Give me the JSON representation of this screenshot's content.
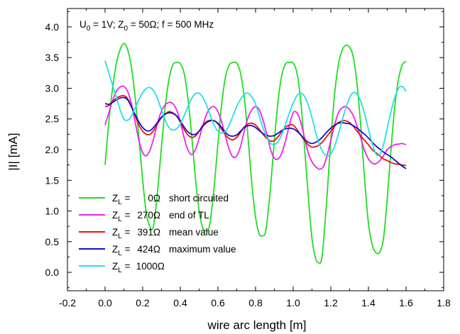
{
  "chart_data": {
    "type": "line",
    "xlabel": "wire arc length  [m]",
    "ylabel": "|I|  [mA]",
    "xlim": [
      -0.2,
      1.8
    ],
    "ylim": [
      -0.3,
      4.3
    ],
    "xticks": [
      "-0.2",
      "0.0",
      "0.2",
      "0.4",
      "0.6",
      "0.8",
      "1.0",
      "1.2",
      "1.4",
      "1.6",
      "1.8"
    ],
    "yticks": [
      "0.0",
      "0.5",
      "1.0",
      "1.5",
      "2.0",
      "2.5",
      "3.0",
      "3.5",
      "4.0"
    ],
    "annotation": {
      "u_sym": "U",
      "u_sub": "0",
      "u_rest": " = 1V;  ",
      "z_sym": "Z",
      "z_sub": "0",
      "z_rest": " = 50Ω;  f = 500 MHz"
    },
    "legend_position": "bottom-left",
    "grid": false,
    "series": [
      {
        "sym": "Z",
        "sub": "L",
        "eq": " =",
        "value": "0Ω",
        "desc": "short circuited",
        "color": "#22dd22",
        "x": [
          0.0,
          0.02,
          0.04,
          0.06,
          0.08,
          0.1,
          0.12,
          0.14,
          0.16,
          0.18,
          0.2,
          0.22,
          0.24,
          0.25,
          0.26,
          0.28,
          0.3,
          0.32,
          0.34,
          0.36,
          0.38,
          0.4,
          0.42,
          0.44,
          0.46,
          0.48,
          0.5,
          0.52,
          0.54,
          0.55,
          0.56,
          0.58,
          0.6,
          0.62,
          0.64,
          0.66,
          0.68,
          0.7,
          0.72,
          0.74,
          0.76,
          0.78,
          0.8,
          0.82,
          0.84,
          0.85,
          0.86,
          0.88,
          0.9,
          0.92,
          0.94,
          0.96,
          0.98,
          1.0,
          1.02,
          1.04,
          1.06,
          1.08,
          1.1,
          1.12,
          1.14,
          1.15,
          1.16,
          1.18,
          1.2,
          1.22,
          1.24,
          1.26,
          1.28,
          1.3,
          1.32,
          1.34,
          1.36,
          1.38,
          1.4,
          1.42,
          1.44,
          1.46,
          1.48,
          1.5,
          1.52,
          1.54,
          1.56,
          1.58,
          1.6
        ],
        "y": [
          1.75,
          2.45,
          3.0,
          3.4,
          3.63,
          3.73,
          3.63,
          3.35,
          2.85,
          2.2,
          1.5,
          0.95,
          0.73,
          0.7,
          0.8,
          1.35,
          2.05,
          2.7,
          3.15,
          3.38,
          3.42,
          3.4,
          3.25,
          2.85,
          2.25,
          1.55,
          1.0,
          0.72,
          0.68,
          0.7,
          0.85,
          1.4,
          2.1,
          2.75,
          3.18,
          3.38,
          3.42,
          3.41,
          3.25,
          2.85,
          2.2,
          1.45,
          0.9,
          0.62,
          0.6,
          0.62,
          0.8,
          1.4,
          2.15,
          2.8,
          3.22,
          3.4,
          3.42,
          3.41,
          3.25,
          2.8,
          2.05,
          1.25,
          0.55,
          0.22,
          0.15,
          0.2,
          0.45,
          1.25,
          2.15,
          2.9,
          3.38,
          3.62,
          3.7,
          3.67,
          3.5,
          3.05,
          2.35,
          1.5,
          0.8,
          0.45,
          0.32,
          0.33,
          0.55,
          1.2,
          2.0,
          2.7,
          3.15,
          3.38,
          3.44
        ]
      },
      {
        "sym": "Z",
        "sub": "L",
        "eq": " =",
        "value": "270Ω",
        "desc": "end of TL",
        "color": "#ee22ee",
        "x": [
          0.0,
          0.02,
          0.04,
          0.06,
          0.08,
          0.1,
          0.12,
          0.14,
          0.16,
          0.18,
          0.2,
          0.22,
          0.24,
          0.26,
          0.28,
          0.3,
          0.32,
          0.34,
          0.36,
          0.38,
          0.4,
          0.42,
          0.44,
          0.46,
          0.48,
          0.5,
          0.52,
          0.54,
          0.56,
          0.58,
          0.6,
          0.62,
          0.64,
          0.66,
          0.68,
          0.7,
          0.72,
          0.74,
          0.76,
          0.78,
          0.8,
          0.82,
          0.84,
          0.86,
          0.88,
          0.9,
          0.92,
          0.94,
          0.96,
          0.98,
          1.0,
          1.02,
          1.04,
          1.06,
          1.08,
          1.1,
          1.12,
          1.14,
          1.16,
          1.18,
          1.2,
          1.22,
          1.24,
          1.26,
          1.28,
          1.3,
          1.32,
          1.34,
          1.36,
          1.38,
          1.4,
          1.42,
          1.44,
          1.46,
          1.48,
          1.5,
          1.52,
          1.54,
          1.56,
          1.58,
          1.6
        ],
        "y": [
          2.4,
          2.6,
          2.8,
          2.95,
          3.02,
          3.03,
          2.95,
          2.75,
          2.45,
          2.15,
          1.95,
          1.9,
          2.0,
          2.2,
          2.45,
          2.63,
          2.73,
          2.77,
          2.75,
          2.65,
          2.45,
          2.2,
          2.0,
          1.92,
          2.0,
          2.18,
          2.4,
          2.58,
          2.68,
          2.7,
          2.62,
          2.45,
          2.22,
          2.0,
          1.88,
          1.9,
          2.05,
          2.3,
          2.52,
          2.65,
          2.7,
          2.65,
          2.48,
          2.25,
          2.0,
          1.86,
          1.85,
          1.95,
          2.15,
          2.4,
          2.6,
          2.6,
          2.45,
          2.2,
          1.95,
          1.8,
          1.72,
          1.68,
          1.72,
          1.9,
          2.15,
          2.4,
          2.6,
          2.68,
          2.7,
          2.65,
          2.55,
          2.38,
          2.18,
          1.98,
          1.85,
          1.78,
          1.77,
          1.82,
          1.9,
          2.0,
          2.05,
          2.08,
          2.09,
          2.1,
          2.08
        ]
      },
      {
        "sym": "Z",
        "sub": "L",
        "eq": " =",
        "value": "391Ω",
        "desc": "mean value",
        "color": "#ee1111",
        "x": [
          0.0,
          0.02,
          0.04,
          0.06,
          0.08,
          0.1,
          0.12,
          0.14,
          0.16,
          0.18,
          0.2,
          0.22,
          0.24,
          0.26,
          0.28,
          0.3,
          0.32,
          0.34,
          0.36,
          0.38,
          0.4,
          0.42,
          0.44,
          0.46,
          0.48,
          0.5,
          0.52,
          0.54,
          0.56,
          0.58,
          0.6,
          0.62,
          0.64,
          0.66,
          0.68,
          0.7,
          0.72,
          0.74,
          0.76,
          0.78,
          0.8,
          0.82,
          0.84,
          0.86,
          0.88,
          0.9,
          0.92,
          0.94,
          0.96,
          0.98,
          1.0,
          1.02,
          1.04,
          1.06,
          1.08,
          1.1,
          1.12,
          1.14,
          1.16,
          1.18,
          1.2,
          1.22,
          1.24,
          1.26,
          1.28,
          1.3,
          1.32,
          1.34,
          1.36,
          1.38,
          1.4,
          1.42,
          1.44,
          1.46,
          1.48,
          1.5,
          1.52,
          1.54,
          1.56,
          1.58,
          1.6
        ],
        "y": [
          2.7,
          2.72,
          2.78,
          2.84,
          2.87,
          2.88,
          2.83,
          2.7,
          2.55,
          2.4,
          2.3,
          2.25,
          2.25,
          2.32,
          2.43,
          2.52,
          2.58,
          2.62,
          2.6,
          2.55,
          2.45,
          2.33,
          2.24,
          2.2,
          2.22,
          2.3,
          2.4,
          2.46,
          2.48,
          2.47,
          2.42,
          2.33,
          2.24,
          2.18,
          2.16,
          2.2,
          2.28,
          2.37,
          2.42,
          2.43,
          2.4,
          2.33,
          2.25,
          2.18,
          2.14,
          2.15,
          2.21,
          2.3,
          2.37,
          2.4,
          2.4,
          2.33,
          2.24,
          2.15,
          2.08,
          2.04,
          2.05,
          2.08,
          2.14,
          2.22,
          2.3,
          2.38,
          2.44,
          2.47,
          2.47,
          2.44,
          2.38,
          2.3,
          2.22,
          2.15,
          2.08,
          2.0,
          1.95,
          1.9,
          1.85,
          1.82,
          1.79,
          1.77,
          1.76,
          1.75,
          1.74
        ]
      },
      {
        "sym": "Z",
        "sub": "L",
        "eq": " =",
        "value": "424Ω",
        "desc": "maximum value",
        "color": "#1111cc",
        "x": [
          0.0,
          0.02,
          0.04,
          0.06,
          0.08,
          0.1,
          0.12,
          0.14,
          0.16,
          0.18,
          0.2,
          0.22,
          0.24,
          0.26,
          0.28,
          0.3,
          0.32,
          0.34,
          0.36,
          0.38,
          0.4,
          0.42,
          0.44,
          0.46,
          0.48,
          0.5,
          0.52,
          0.54,
          0.56,
          0.58,
          0.6,
          0.62,
          0.64,
          0.66,
          0.68,
          0.7,
          0.72,
          0.74,
          0.76,
          0.78,
          0.8,
          0.82,
          0.84,
          0.86,
          0.88,
          0.9,
          0.92,
          0.94,
          0.96,
          0.98,
          1.0,
          1.02,
          1.04,
          1.06,
          1.08,
          1.1,
          1.12,
          1.14,
          1.16,
          1.18,
          1.2,
          1.22,
          1.24,
          1.26,
          1.28,
          1.3,
          1.32,
          1.34,
          1.36,
          1.38,
          1.4,
          1.42,
          1.44,
          1.46,
          1.48,
          1.5,
          1.52,
          1.54,
          1.56,
          1.58,
          1.6
        ],
        "y": [
          2.75,
          2.74,
          2.77,
          2.81,
          2.84,
          2.85,
          2.81,
          2.7,
          2.57,
          2.45,
          2.36,
          2.31,
          2.31,
          2.37,
          2.45,
          2.53,
          2.58,
          2.6,
          2.59,
          2.55,
          2.47,
          2.37,
          2.29,
          2.25,
          2.25,
          2.3,
          2.38,
          2.44,
          2.47,
          2.47,
          2.43,
          2.36,
          2.28,
          2.23,
          2.22,
          2.24,
          2.3,
          2.36,
          2.39,
          2.39,
          2.36,
          2.31,
          2.26,
          2.23,
          2.22,
          2.23,
          2.27,
          2.31,
          2.34,
          2.35,
          2.34,
          2.3,
          2.24,
          2.17,
          2.12,
          2.1,
          2.12,
          2.16,
          2.22,
          2.29,
          2.35,
          2.4,
          2.43,
          2.44,
          2.43,
          2.42,
          2.39,
          2.35,
          2.3,
          2.25,
          2.19,
          2.12,
          2.06,
          2.01,
          1.96,
          1.92,
          1.88,
          1.83,
          1.78,
          1.73,
          1.69
        ]
      },
      {
        "sym": "Z",
        "sub": "L",
        "eq": " =",
        "value": "1000Ω",
        "desc": "",
        "color": "#22e0e8",
        "x": [
          0.0,
          0.02,
          0.04,
          0.06,
          0.08,
          0.1,
          0.12,
          0.14,
          0.16,
          0.18,
          0.2,
          0.22,
          0.24,
          0.26,
          0.28,
          0.3,
          0.32,
          0.34,
          0.36,
          0.38,
          0.4,
          0.42,
          0.44,
          0.46,
          0.48,
          0.5,
          0.52,
          0.54,
          0.56,
          0.58,
          0.6,
          0.62,
          0.64,
          0.66,
          0.68,
          0.7,
          0.72,
          0.74,
          0.76,
          0.78,
          0.8,
          0.82,
          0.84,
          0.86,
          0.88,
          0.9,
          0.92,
          0.94,
          0.96,
          0.98,
          1.0,
          1.02,
          1.04,
          1.06,
          1.08,
          1.1,
          1.12,
          1.14,
          1.16,
          1.18,
          1.2,
          1.22,
          1.24,
          1.26,
          1.28,
          1.3,
          1.32,
          1.34,
          1.36,
          1.38,
          1.4,
          1.42,
          1.44,
          1.46,
          1.48,
          1.5,
          1.52,
          1.54,
          1.56,
          1.58,
          1.6
        ],
        "y": [
          3.45,
          3.25,
          3.05,
          2.85,
          2.65,
          2.5,
          2.48,
          2.55,
          2.68,
          2.82,
          2.93,
          3.0,
          3.01,
          2.95,
          2.82,
          2.65,
          2.48,
          2.36,
          2.32,
          2.34,
          2.42,
          2.55,
          2.7,
          2.83,
          2.91,
          2.92,
          2.85,
          2.72,
          2.55,
          2.4,
          2.3,
          2.27,
          2.3,
          2.4,
          2.55,
          2.7,
          2.82,
          2.9,
          2.92,
          2.86,
          2.74,
          2.55,
          2.35,
          2.2,
          2.1,
          2.08,
          2.13,
          2.25,
          2.42,
          2.6,
          2.76,
          2.88,
          2.92,
          2.87,
          2.73,
          2.52,
          2.28,
          2.08,
          1.95,
          1.9,
          1.93,
          2.05,
          2.25,
          2.47,
          2.68,
          2.85,
          2.93,
          2.9,
          2.78,
          2.58,
          2.33,
          2.1,
          1.93,
          1.92,
          2.08,
          2.35,
          2.62,
          2.85,
          3.0,
          3.03,
          2.95
        ]
      }
    ]
  }
}
